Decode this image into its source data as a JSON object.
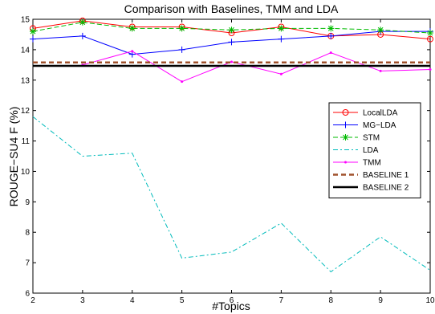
{
  "chart_data": {
    "type": "line",
    "title": "Comparison with Baselines, TMM and LDA",
    "xlabel": "#Topics",
    "ylabel": "ROUGE−SU4 F (%)",
    "x": [
      2,
      3,
      4,
      5,
      6,
      7,
      8,
      9,
      10
    ],
    "xlim": [
      2,
      10
    ],
    "ylim": [
      6,
      15
    ],
    "xticks": [
      "2",
      "3",
      "4",
      "5",
      "6",
      "7",
      "8",
      "9",
      "10"
    ],
    "yticks": [
      "6",
      "7",
      "8",
      "9",
      "10",
      "11",
      "12",
      "13",
      "14",
      "15"
    ],
    "grid": false,
    "legend_position": "right",
    "series": [
      {
        "name": "LocalLDA",
        "color": "#ff0000",
        "dash": "",
        "width": 1,
        "marker": "circle",
        "values": [
          14.7,
          14.95,
          14.75,
          14.75,
          14.55,
          14.75,
          14.45,
          14.5,
          14.35
        ]
      },
      {
        "name": "MG−LDA",
        "color": "#0000ff",
        "dash": "",
        "width": 1,
        "marker": "plus",
        "values": [
          14.35,
          14.45,
          13.85,
          14.0,
          14.25,
          14.35,
          14.45,
          14.6,
          14.6
        ]
      },
      {
        "name": "STM",
        "color": "#00bb00",
        "dash": "6,3",
        "width": 1,
        "marker": "star",
        "values": [
          14.6,
          14.9,
          14.7,
          14.7,
          14.65,
          14.7,
          14.7,
          14.65,
          14.55
        ]
      },
      {
        "name": "LDA",
        "color": "#00bbbb",
        "dash": "6,3,2,3",
        "width": 1,
        "marker": "none",
        "values": [
          11.8,
          10.5,
          10.6,
          7.15,
          7.35,
          8.3,
          6.7,
          7.85,
          6.75
        ]
      },
      {
        "name": "TMM",
        "color": "#ff00ff",
        "dash": "",
        "width": 1,
        "marker": "dot",
        "values": [
          null,
          13.5,
          13.95,
          12.95,
          13.6,
          13.2,
          13.9,
          13.3,
          13.35
        ]
      },
      {
        "name": "BASELINE 1",
        "color": "#a0522d",
        "dash": "6,4",
        "width": 2.5,
        "marker": "none",
        "values": [
          13.58,
          13.58,
          13.58,
          13.58,
          13.58,
          13.58,
          13.58,
          13.58,
          13.58
        ]
      },
      {
        "name": "BASELINE 2",
        "color": "#000000",
        "dash": "",
        "width": 2.5,
        "marker": "none",
        "values": [
          13.47,
          13.47,
          13.47,
          13.47,
          13.47,
          13.47,
          13.47,
          13.47,
          13.47
        ]
      }
    ]
  }
}
